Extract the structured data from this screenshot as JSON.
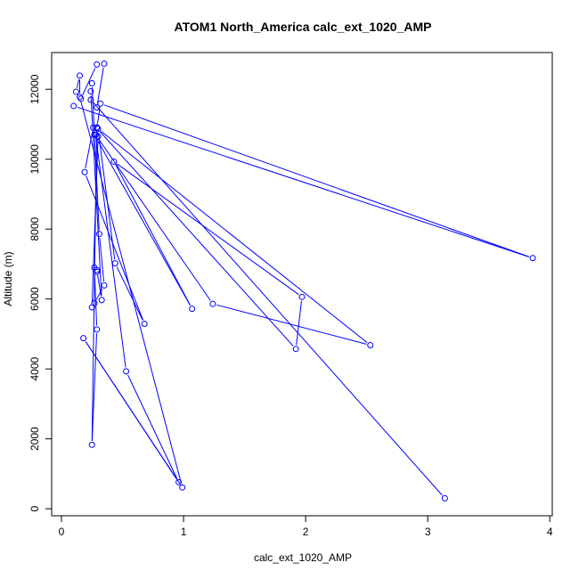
{
  "chart_data": {
    "type": "line",
    "title": "ATOM1 North_America calc_ext_1020_AMP",
    "xlabel": "calc_ext_1020_AMP",
    "ylabel": "Altitude (m)",
    "xlim": [
      -0.08,
      4.02
    ],
    "ylim": [
      -200,
      13050
    ],
    "x_ticks": [
      0,
      1,
      2,
      3,
      4
    ],
    "y_ticks": [
      0,
      2000,
      4000,
      6000,
      8000,
      10000,
      12000
    ],
    "x_tick_labels": [
      "0",
      "1",
      "2",
      "3",
      "4"
    ],
    "y_tick_labels": [
      "0",
      "2000",
      "4000",
      "6000",
      "8000",
      "10000",
      "12000"
    ],
    "line_color": "#0000ff",
    "marker": "open-circle",
    "grid": false,
    "legend": "none",
    "series": [
      {
        "points": [
          [
            0.1,
            11520
          ],
          [
            3.86,
            7170
          ],
          [
            0.32,
            11590
          ],
          [
            0.29,
            10890
          ],
          [
            1.92,
            4570
          ],
          [
            1.97,
            6060
          ],
          [
            0.43,
            9930
          ],
          [
            1.07,
            5720
          ],
          [
            0.27,
            10700
          ],
          [
            0.3,
            10650
          ],
          [
            0.25,
            5760
          ],
          [
            0.27,
            5880
          ],
          [
            0.35,
            6390
          ],
          [
            0.31,
            7860
          ],
          [
            0.25,
            12170
          ],
          [
            0.24,
            11940
          ],
          [
            0.33,
            5970
          ],
          [
            0.29,
            6830
          ],
          [
            0.29,
            6780
          ],
          [
            0.27,
            6900
          ],
          [
            0.29,
            5130
          ],
          [
            0.25,
            1830
          ],
          [
            0.29,
            10910
          ],
          [
            0.26,
            10900
          ],
          [
            0.19,
            9630
          ],
          [
            0.68,
            5290
          ],
          [
            0.44,
            7020
          ],
          [
            0.3,
            10870
          ],
          [
            2.53,
            4680
          ],
          [
            1.24,
            5860
          ],
          [
            0.28,
            10700
          ],
          [
            0.53,
            3930
          ],
          [
            0.96,
            760
          ],
          [
            0.18,
            4880
          ],
          [
            0.99,
            610
          ],
          [
            0.15,
            11780
          ],
          [
            0.15,
            12390
          ],
          [
            0.12,
            11930
          ],
          [
            0.16,
            11730
          ],
          [
            0.29,
            12710
          ],
          [
            0.35,
            12730
          ],
          [
            0.29,
            11480
          ],
          [
            0.24,
            11700
          ],
          [
            3.14,
            300
          ]
        ]
      }
    ]
  }
}
